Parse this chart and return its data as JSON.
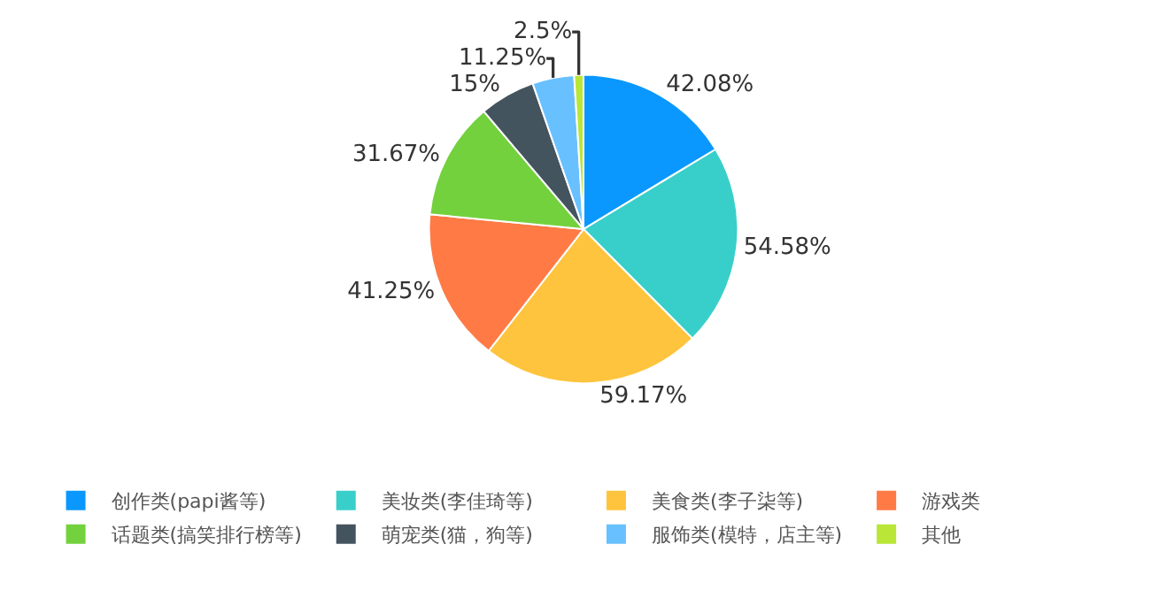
{
  "chart_data": {
    "type": "pie",
    "categories": [
      "创作类(papi酱等)",
      "美妆类(李佳琦等)",
      "美食类(李子柒等)",
      "游戏类",
      "话题类(搞笑排行榜等)",
      "萌宠类(猫，狗等)",
      "服饰类(模特，店主等)",
      "其他"
    ],
    "values": [
      42.08,
      54.58,
      59.17,
      41.25,
      31.67,
      15,
      11.25,
      2.5
    ],
    "value_labels": [
      "42.08%",
      "54.58%",
      "59.17%",
      "41.25%",
      "31.67%",
      "15%",
      "11.25%",
      "2.5%"
    ],
    "colors": [
      "#0a98ff",
      "#38cfca",
      "#ffc43d",
      "#ff7a45",
      "#73d13d",
      "#44545f",
      "#69c0ff",
      "#b9e637"
    ],
    "legend": "bottom"
  }
}
